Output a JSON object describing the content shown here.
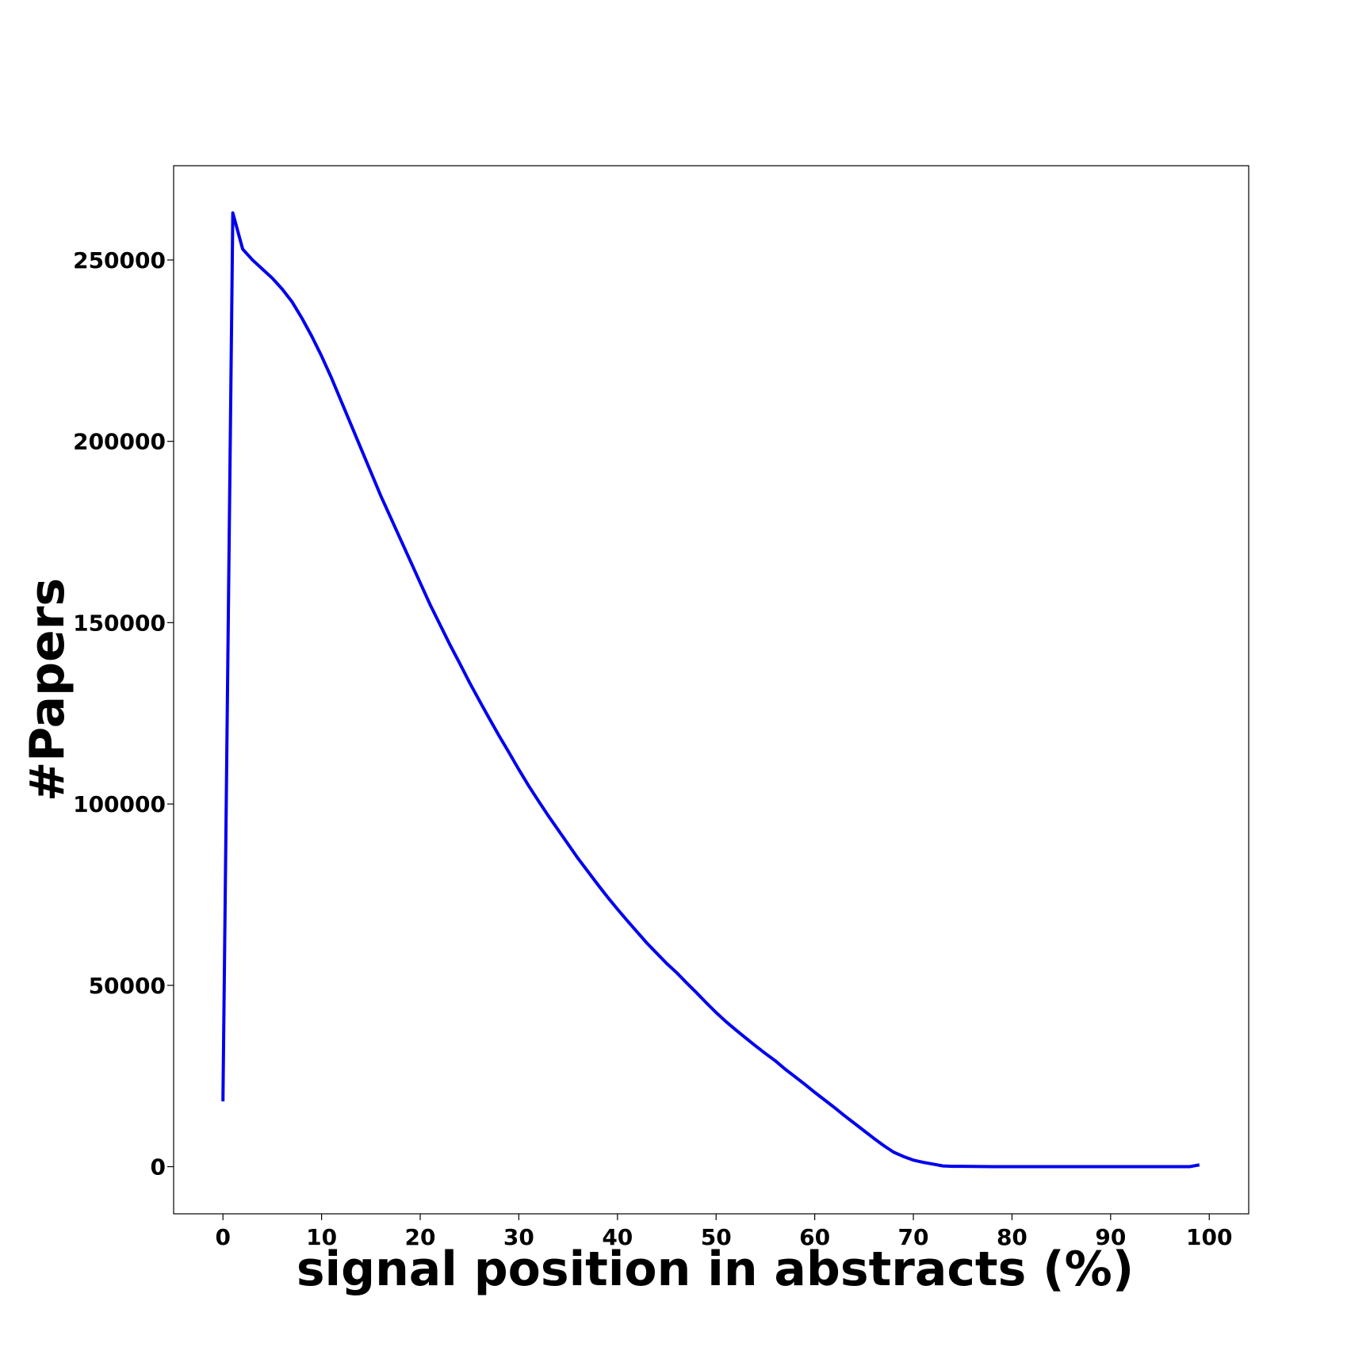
{
  "chart_data": {
    "type": "line",
    "title": "",
    "xlabel": "signal position in abstracts (%)",
    "ylabel": "#Papers",
    "xlim": [
      -5,
      104
    ],
    "ylim": [
      -13000,
      276000
    ],
    "xticks": [
      0,
      10,
      20,
      30,
      40,
      50,
      60,
      70,
      80,
      90,
      100
    ],
    "yticks": [
      0,
      50000,
      100000,
      150000,
      200000,
      250000
    ],
    "grid": false,
    "legend": "none",
    "line_color": "#0000ee",
    "series": [
      {
        "x": [
          0,
          1,
          2,
          3,
          4,
          5,
          6,
          7,
          8,
          9,
          10,
          11,
          12,
          13,
          14,
          15,
          16,
          17,
          18,
          19,
          20,
          21,
          22,
          23,
          24,
          25,
          26,
          27,
          28,
          29,
          30,
          31,
          32,
          33,
          34,
          35,
          36,
          37,
          38,
          39,
          40,
          41,
          42,
          43,
          44,
          45,
          46,
          47,
          48,
          49,
          50,
          51,
          52,
          53,
          54,
          55,
          56,
          57,
          58,
          59,
          60,
          61,
          62,
          63,
          64,
          65,
          66,
          67,
          68,
          69,
          70,
          71,
          72,
          73,
          74,
          75,
          76,
          77,
          78,
          79,
          80,
          81,
          82,
          83,
          84,
          85,
          86,
          87,
          88,
          89,
          90,
          91,
          92,
          93,
          94,
          95,
          96,
          97,
          98,
          99
        ],
        "values": [
          18000,
          263000,
          253000,
          250000,
          247500,
          245000,
          242000,
          238500,
          234000,
          229000,
          223500,
          217500,
          211000,
          204500,
          198000,
          191500,
          185000,
          179000,
          173000,
          167000,
          161000,
          155000,
          149500,
          144000,
          138800,
          133500,
          128500,
          123600,
          118800,
          114200,
          109500,
          105000,
          100800,
          96700,
          92800,
          88900,
          85000,
          81400,
          77800,
          74300,
          71000,
          67800,
          64700,
          61600,
          58800,
          56000,
          53500,
          50700,
          48000,
          45200,
          42500,
          40000,
          37700,
          35500,
          33300,
          31200,
          29200,
          26900,
          24800,
          22700,
          20500,
          18400,
          16300,
          14100,
          12000,
          9900,
          7800,
          5800,
          4000,
          2800,
          1800,
          1200,
          700,
          200,
          100,
          80,
          60,
          40,
          20,
          10,
          5,
          3,
          2,
          1,
          1,
          1,
          1,
          1,
          1,
          1,
          1,
          1,
          1,
          1,
          1,
          1,
          1,
          1,
          1,
          500
        ]
      }
    ]
  }
}
